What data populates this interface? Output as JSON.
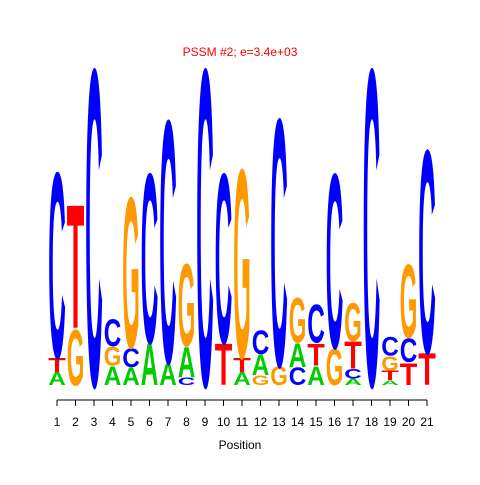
{
  "chart_data": {
    "type": "logo",
    "title": "PSSM #2; e=3.4e+03",
    "x_label": "Position",
    "x": [
      1,
      2,
      3,
      4,
      5,
      6,
      7,
      8,
      9,
      10,
      11,
      12,
      13,
      14,
      15,
      16,
      17,
      18,
      19,
      20,
      21
    ],
    "xticks": [
      1,
      2,
      3,
      4,
      5,
      6,
      7,
      8,
      9,
      10,
      11,
      12,
      13,
      14,
      15,
      16,
      17,
      18,
      19,
      20,
      21
    ],
    "xlim": [
      0.5,
      21.5
    ],
    "ylim": [
      0,
      2
    ],
    "series": [
      {
        "name": "A",
        "color": "#00cc00",
        "values": [
          0.08,
          0,
          0,
          0.12,
          0.11,
          0.26,
          0.14,
          0.19,
          0,
          0,
          0.08,
          0.13,
          0,
          0.15,
          0.12,
          0,
          0.04,
          0,
          0.03,
          0,
          0
        ]
      },
      {
        "name": "C",
        "color": "#0000ff",
        "values": [
          1.17,
          0,
          2.0,
          0.17,
          0.12,
          1.07,
          1.53,
          0.05,
          2.0,
          1.07,
          0,
          0.15,
          1.56,
          0.11,
          0.24,
          1.1,
          0.06,
          2.0,
          0.12,
          0.15,
          1.28
        ]
      },
      {
        "name": "G",
        "color": "#ff9900",
        "values": [
          0,
          0.35,
          0,
          0.12,
          0.95,
          0,
          0,
          0.52,
          0,
          0,
          1.19,
          0.06,
          0.12,
          0.28,
          0,
          0.23,
          0.24,
          0,
          0.09,
          0.46,
          0
        ]
      },
      {
        "name": "T",
        "color": "#ff0000",
        "values": [
          0.09,
          0.78,
          0,
          0,
          0,
          0,
          0,
          0,
          0,
          0.26,
          0.09,
          0,
          0,
          0,
          0.14,
          0,
          0.17,
          0,
          0.06,
          0.14,
          0.2
        ]
      }
    ]
  }
}
